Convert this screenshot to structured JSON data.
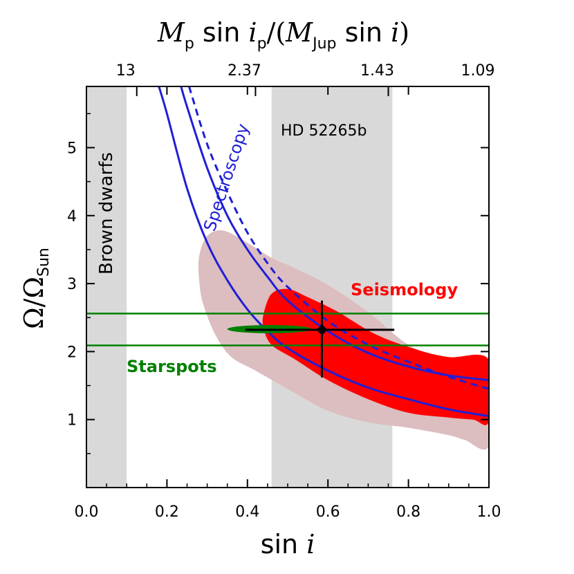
{
  "chart_data": {
    "type": "scatter",
    "xlabel_parts": [
      "sin ",
      "i"
    ],
    "ylabel_parts": [
      "Ω/Ω",
      "Sun"
    ],
    "top_label_parts": [
      "M",
      "p",
      " sin ",
      "i",
      "p",
      "/(",
      "M",
      "Jup",
      " sin ",
      "i",
      ")"
    ],
    "xlim": [
      0.0,
      1.0
    ],
    "ylim": [
      0.0,
      5.9
    ],
    "x_ticks": [
      0.0,
      0.2,
      0.4,
      0.6,
      0.8,
      1.0
    ],
    "x_tick_labels": [
      "0.0",
      "0.2",
      "0.4",
      "0.6",
      "0.8",
      "1.0"
    ],
    "y_ticks": [
      1,
      2,
      3,
      4,
      5
    ],
    "y_tick_labels": [
      "1",
      "2",
      "3",
      "4",
      "5"
    ],
    "top_ticks": [
      {
        "x": 0.125,
        "label": "13"
      },
      {
        "x": 0.42,
        "label": "2.37"
      },
      {
        "x": 0.75,
        "label": "1.43"
      },
      {
        "x": 1.0,
        "label": "1.09"
      }
    ],
    "regions": [
      {
        "name": "brown-dwarfs",
        "label": "Brown dwarfs",
        "x_range": [
          0.0,
          0.1
        ]
      },
      {
        "name": "hd-52265b",
        "label": "HD 52265b",
        "x_range": [
          0.46,
          0.76
        ]
      }
    ],
    "starspots": {
      "label": "Starspots",
      "y_lower": 2.09,
      "y_upper": 2.56,
      "ellipse_center": [
        0.455,
        2.33
      ],
      "ellipse_half_widths": [
        0.105,
        0.06
      ]
    },
    "spectroscopy": {
      "label": "Spectroscopy",
      "lower": [
        [
          0.18,
          5.9
        ],
        [
          0.2,
          5.5
        ],
        [
          0.25,
          4.4
        ],
        [
          0.3,
          3.6
        ],
        [
          0.35,
          3.05
        ],
        [
          0.4,
          2.62
        ],
        [
          0.45,
          2.3
        ],
        [
          0.5,
          2.05
        ],
        [
          0.6,
          1.72
        ],
        [
          0.7,
          1.47
        ],
        [
          0.8,
          1.3
        ],
        [
          0.9,
          1.15
        ],
        [
          1.0,
          1.05
        ]
      ],
      "center": [
        [
          0.255,
          5.9
        ],
        [
          0.3,
          5.05
        ],
        [
          0.35,
          4.35
        ],
        [
          0.4,
          3.75
        ],
        [
          0.45,
          3.3
        ],
        [
          0.5,
          2.95
        ],
        [
          0.6,
          2.45
        ],
        [
          0.7,
          2.1
        ],
        [
          0.8,
          1.85
        ],
        [
          0.9,
          1.63
        ],
        [
          1.0,
          1.45
        ]
      ],
      "upper": [
        [
          0.235,
          5.9
        ],
        [
          0.25,
          5.6
        ],
        [
          0.3,
          4.7
        ],
        [
          0.35,
          4.0
        ],
        [
          0.4,
          3.5
        ],
        [
          0.45,
          3.1
        ],
        [
          0.5,
          2.75
        ],
        [
          0.6,
          2.3
        ],
        [
          0.7,
          1.98
        ],
        [
          0.8,
          1.78
        ],
        [
          0.9,
          1.65
        ],
        [
          1.0,
          1.58
        ]
      ]
    },
    "seismology": {
      "label": "Seismology",
      "outer_contour": [
        [
          0.28,
          3.4
        ],
        [
          0.3,
          3.7
        ],
        [
          0.34,
          3.78
        ],
        [
          0.4,
          3.6
        ],
        [
          0.46,
          3.38
        ],
        [
          0.52,
          3.22
        ],
        [
          0.6,
          2.98
        ],
        [
          0.7,
          2.58
        ],
        [
          0.8,
          2.1
        ],
        [
          0.9,
          1.86
        ],
        [
          1.0,
          1.72
        ],
        [
          1.0,
          0.62
        ],
        [
          0.94,
          0.7
        ],
        [
          0.9,
          0.77
        ],
        [
          0.8,
          0.88
        ],
        [
          0.7,
          0.96
        ],
        [
          0.6,
          1.13
        ],
        [
          0.5,
          1.45
        ],
        [
          0.42,
          1.72
        ],
        [
          0.36,
          1.92
        ],
        [
          0.32,
          2.25
        ],
        [
          0.29,
          2.7
        ],
        [
          0.28,
          3.05
        ]
      ],
      "inner_contour": [
        [
          0.44,
          2.55
        ],
        [
          0.46,
          2.85
        ],
        [
          0.5,
          2.92
        ],
        [
          0.55,
          2.8
        ],
        [
          0.62,
          2.6
        ],
        [
          0.72,
          2.25
        ],
        [
          0.82,
          2.03
        ],
        [
          0.9,
          1.92
        ],
        [
          1.0,
          1.88
        ],
        [
          1.0,
          0.98
        ],
        [
          0.96,
          1.0
        ],
        [
          0.9,
          1.03
        ],
        [
          0.8,
          1.1
        ],
        [
          0.7,
          1.3
        ],
        [
          0.6,
          1.58
        ],
        [
          0.52,
          1.88
        ],
        [
          0.46,
          2.1
        ],
        [
          0.44,
          2.35
        ]
      ]
    },
    "point": {
      "x": 0.585,
      "y": 2.32,
      "x_err": [
        0.395,
        0.765
      ],
      "y_err": [
        1.62,
        2.75
      ]
    },
    "colors": {
      "region": "#d9d9d9",
      "seis_outer": "#dcbdc0",
      "seis_inner": "#ff0000",
      "spectro": "#1f1fd6",
      "starspots": "#008000",
      "point": "#000000"
    }
  }
}
